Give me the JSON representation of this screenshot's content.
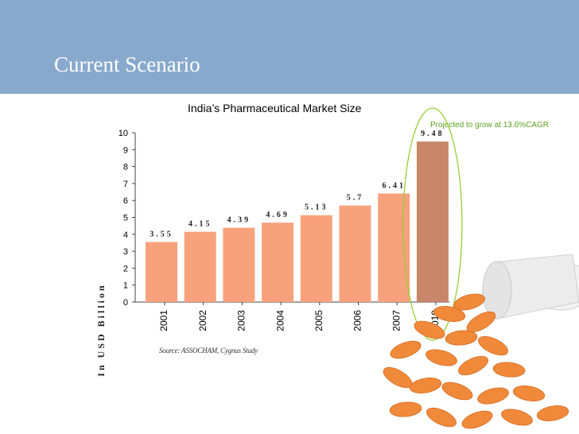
{
  "slide": {
    "title": "Current Scenario"
  },
  "chart_data": {
    "type": "bar",
    "title": "India’s Pharmaceutical Market Size",
    "ylabel": "In USD Billion",
    "xlabel": "",
    "categories": [
      "2001",
      "2002",
      "2003",
      "2004",
      "2005",
      "2006",
      "2007",
      "2010"
    ],
    "values": [
      3.55,
      4.15,
      4.39,
      4.69,
      5.13,
      5.7,
      6.41,
      9.48
    ],
    "data_labels": [
      "3.55",
      "4.15",
      "4.39",
      "4.69",
      "5.13",
      "5.7",
      "6.41",
      "9.48"
    ],
    "yticks": [
      "0",
      "1",
      "2",
      "3",
      "4",
      "5",
      "6",
      "7",
      "8",
      "9",
      "10"
    ],
    "ylim": [
      0,
      10
    ],
    "grid": false,
    "legend": "none",
    "bar_color": "#f7a27c",
    "highlight_color": "#c8866a",
    "highlight_index": 7,
    "annotation": "Projected to grow at 13.6%CAGR",
    "source": "Source: ASSOCHAM, Cygnus Study"
  },
  "colors": {
    "header": "#87a9cc",
    "ellipse": "#9acd32"
  }
}
